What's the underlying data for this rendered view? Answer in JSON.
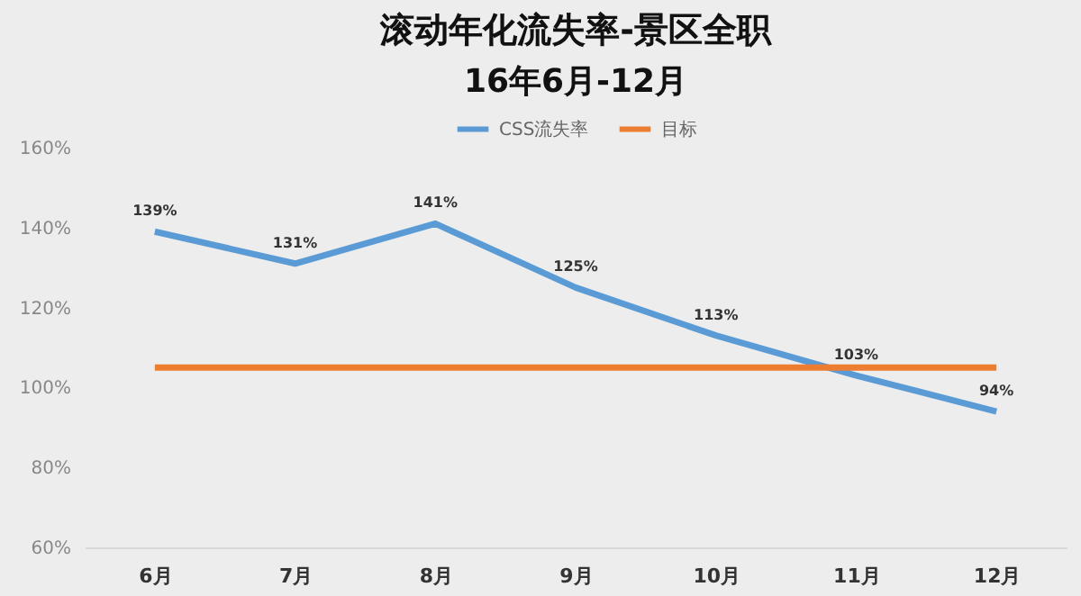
{
  "chart_data": {
    "type": "line",
    "title": "滚动年化流失率-景区全职",
    "subtitle": "16年6月-12月",
    "categories": [
      "6月",
      "7月",
      "8月",
      "9月",
      "10月",
      "11月",
      "12月"
    ],
    "series": [
      {
        "name": "CSS流失率",
        "color": "#5b9bd5",
        "values": [
          139,
          131,
          141,
          125,
          113,
          103,
          94
        ],
        "value_labels": [
          "139%",
          "131%",
          "141%",
          "125%",
          "113%",
          "103%",
          "94%"
        ]
      },
      {
        "name": "目标",
        "color": "#ed7d31",
        "values": [
          105,
          105,
          105,
          105,
          105,
          105,
          105
        ]
      }
    ],
    "ylim": [
      60,
      160
    ],
    "yticks": [
      {
        "value": 60,
        "label": "60%"
      },
      {
        "value": 80,
        "label": "80%"
      },
      {
        "value": 100,
        "label": "100%"
      },
      {
        "value": 120,
        "label": "120%"
      },
      {
        "value": 140,
        "label": "140%"
      },
      {
        "value": 160,
        "label": "160%"
      }
    ],
    "legend": "top",
    "marker": "none"
  }
}
